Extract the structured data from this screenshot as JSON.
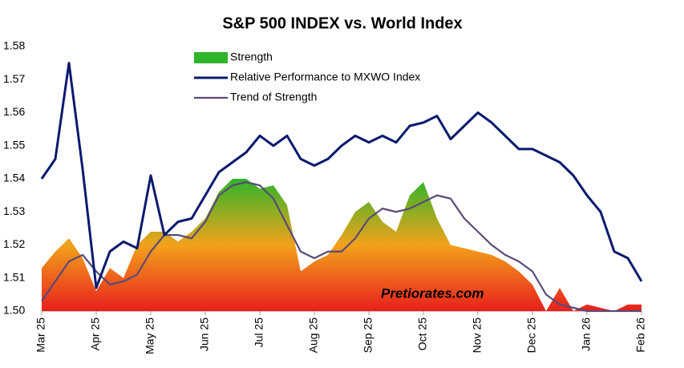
{
  "chart_data": {
    "type": "line",
    "title": "S&P 500 INDEX    vs.   World Index",
    "annotation": "Pretiorates.com",
    "categories": [
      "Mar 25",
      null,
      null,
      null,
      "Apr 25",
      null,
      null,
      null,
      "May 25",
      null,
      null,
      null,
      "Jun 25",
      null,
      null,
      null,
      "Jul 25",
      null,
      null,
      null,
      "Aug 25",
      null,
      null,
      null,
      "Sep 25",
      null,
      null,
      null,
      "Oct 25",
      null,
      null,
      null,
      "Nov 25",
      null,
      null,
      null,
      "Dec 25",
      null,
      null,
      null,
      "Jan 26",
      null,
      null,
      null,
      "Feb 26"
    ],
    "ylim": [
      1.5,
      1.58
    ],
    "yticks": [
      {
        "value": 1.5,
        "label": "1.50"
      },
      1.51,
      1.52,
      1.53,
      1.54,
      1.55,
      1.56,
      1.57,
      1.58
    ],
    "grid": false,
    "legend": "top",
    "series": [
      {
        "name": "Strength",
        "type": "area",
        "colors": [
          "#2fb52a",
          "#f2a21c",
          "#e8201c"
        ],
        "values": [
          1.513,
          1.518,
          1.522,
          1.516,
          1.506,
          1.513,
          1.51,
          1.52,
          1.524,
          1.524,
          1.521,
          1.524,
          1.528,
          1.536,
          1.54,
          1.54,
          1.537,
          1.538,
          1.532,
          1.512,
          1.515,
          1.517,
          1.523,
          1.53,
          1.533,
          1.527,
          1.524,
          1.535,
          1.539,
          1.528,
          1.52,
          1.519,
          1.518,
          1.517,
          1.515,
          1.512,
          1.508,
          1.5,
          1.507,
          1.5,
          1.502,
          1.501,
          1.5,
          1.502,
          1.502
        ]
      },
      {
        "name": "Relative Performance to MXWO Index",
        "type": "line",
        "color": "#0a1a6e",
        "values": [
          1.54,
          1.546,
          1.575,
          1.543,
          1.507,
          1.518,
          1.521,
          1.519,
          1.541,
          1.523,
          1.527,
          1.528,
          1.535,
          1.542,
          1.545,
          1.548,
          1.553,
          1.55,
          1.553,
          1.546,
          1.544,
          1.546,
          1.55,
          1.553,
          1.551,
          1.553,
          1.551,
          1.556,
          1.557,
          1.559,
          1.552,
          1.556,
          1.56,
          1.557,
          1.553,
          1.549,
          1.549,
          1.547,
          1.545,
          1.541,
          1.535,
          1.53,
          1.518,
          1.516,
          1.509
        ]
      },
      {
        "name": "Trend of Strength",
        "type": "line",
        "color": "#5a4a78",
        "values": [
          1.503,
          1.509,
          1.515,
          1.517,
          1.512,
          1.508,
          1.509,
          1.511,
          1.518,
          1.523,
          1.523,
          1.522,
          1.527,
          1.535,
          1.538,
          1.539,
          1.538,
          1.534,
          1.526,
          1.518,
          1.516,
          1.518,
          1.518,
          1.522,
          1.528,
          1.531,
          1.53,
          1.531,
          1.533,
          1.535,
          1.534,
          1.528,
          1.524,
          1.52,
          1.517,
          1.515,
          1.512,
          1.505,
          1.502,
          1.501,
          1.5,
          1.5,
          1.5,
          1.5,
          1.5
        ]
      }
    ]
  }
}
